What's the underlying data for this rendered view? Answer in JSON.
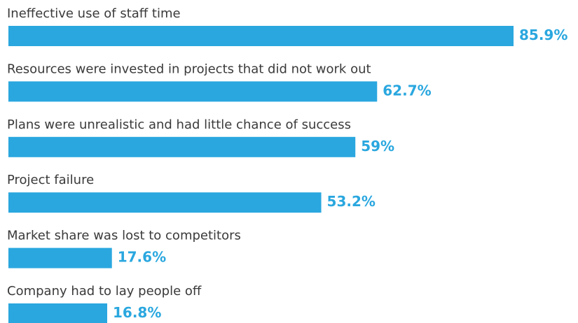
{
  "chart_data": {
    "type": "bar",
    "orientation": "horizontal",
    "categories": [
      "Ineffective use of staff time",
      "Resources were invested in projects that did not work out",
      "Plans were unrealistic and had little chance of success",
      "Project failure",
      "Market share was lost to competitors",
      "Company had to lay people off"
    ],
    "values": [
      85.9,
      62.7,
      59,
      53.2,
      17.6,
      16.8
    ],
    "value_labels": [
      "85.9%",
      "62.7%",
      "59%",
      "53.2%",
      "17.6%",
      "16.8%"
    ],
    "color": "#2aa7df"
  }
}
